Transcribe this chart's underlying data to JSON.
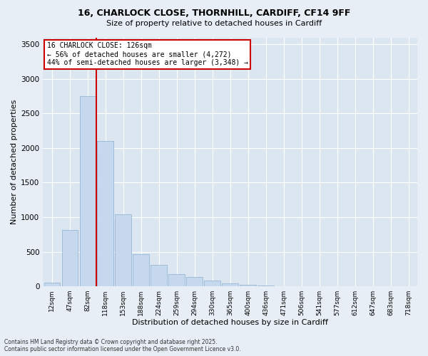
{
  "title_line1": "16, CHARLOCK CLOSE, THORNHILL, CARDIFF, CF14 9FF",
  "title_line2": "Size of property relative to detached houses in Cardiff",
  "xlabel": "Distribution of detached houses by size in Cardiff",
  "ylabel": "Number of detached properties",
  "categories": [
    "12sqm",
    "47sqm",
    "82sqm",
    "118sqm",
    "153sqm",
    "188sqm",
    "224sqm",
    "259sqm",
    "294sqm",
    "330sqm",
    "365sqm",
    "400sqm",
    "436sqm",
    "471sqm",
    "506sqm",
    "541sqm",
    "577sqm",
    "612sqm",
    "647sqm",
    "683sqm",
    "718sqm"
  ],
  "values": [
    50,
    810,
    2750,
    2100,
    1040,
    460,
    310,
    180,
    130,
    80,
    40,
    20,
    8,
    4,
    3,
    2,
    1,
    1,
    1,
    1,
    0
  ],
  "bar_color": "#c5d8ed",
  "bar_edgecolor": "#8ab0d0",
  "ylim": [
    0,
    3600
  ],
  "yticks": [
    0,
    500,
    1000,
    1500,
    2000,
    2500,
    3000,
    3500
  ],
  "vline_color": "#cc0000",
  "annotation_text": "16 CHARLOCK CLOSE: 126sqm\n← 56% of detached houses are smaller (4,272)\n44% of semi-detached houses are larger (3,348) →",
  "annotation_box_color": "#cc0000",
  "footer_line1": "Contains HM Land Registry data © Crown copyright and database right 2025.",
  "footer_line2": "Contains public sector information licensed under the Open Government Licence v3.0.",
  "bg_color": "#e8eef5",
  "plot_bg_color": "#dce6f0"
}
